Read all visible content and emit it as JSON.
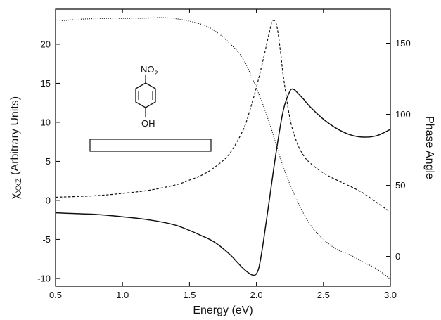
{
  "chart_data": {
    "type": "line",
    "title": "",
    "xlabel": "Energy (eV)",
    "ylabel_prefix": "χ",
    "ylabel_sub": "XXZ",
    "ylabel_suffix": " (Arbitrary Units)",
    "y2label": "Phase Angle",
    "xlim": [
      0.5,
      3.0
    ],
    "ylim": [
      -11,
      24.5
    ],
    "y2lim": [
      -21,
      174
    ],
    "x_ticks": [
      "0.5",
      "1.0",
      "1.5",
      "2.0",
      "2.5",
      "3.0"
    ],
    "y_ticks": [
      "-10",
      "-5",
      "0",
      "5",
      "10",
      "15",
      "20"
    ],
    "y2_ticks": [
      "0",
      "50",
      "100",
      "150"
    ],
    "grid": false,
    "legend": "none",
    "series": [
      {
        "style": "solid",
        "axis": "left",
        "x": [
          0.5,
          0.8,
          1.0,
          1.2,
          1.4,
          1.6,
          1.7,
          1.8,
          1.85,
          1.9,
          1.95,
          1.98,
          2.0,
          2.02,
          2.05,
          2.1,
          2.15,
          2.2,
          2.25,
          2.28,
          2.3,
          2.35,
          2.4,
          2.5,
          2.6,
          2.7,
          2.8,
          2.9,
          3.0
        ],
        "values": [
          -1.6,
          -1.8,
          -2.1,
          -2.5,
          -3.2,
          -4.6,
          -5.5,
          -6.9,
          -7.8,
          -8.7,
          -9.4,
          -9.6,
          -9.4,
          -8.5,
          -5.5,
          0.5,
          6.5,
          11.5,
          14.0,
          14.2,
          13.9,
          13.0,
          12.0,
          10.4,
          9.2,
          8.4,
          8.1,
          8.3,
          9.1
        ]
      },
      {
        "style": "dashed",
        "axis": "left",
        "x": [
          0.5,
          0.8,
          1.0,
          1.2,
          1.4,
          1.5,
          1.6,
          1.7,
          1.8,
          1.9,
          1.95,
          2.0,
          2.05,
          2.1,
          2.12,
          2.15,
          2.18,
          2.2,
          2.25,
          2.3,
          2.35,
          2.4,
          2.5,
          2.6,
          2.7,
          2.8,
          2.9,
          3.0
        ],
        "values": [
          0.4,
          0.6,
          0.9,
          1.3,
          2.0,
          2.6,
          3.3,
          4.4,
          6.0,
          9.0,
          11.5,
          14.5,
          18.0,
          21.8,
          23.0,
          22.5,
          19.0,
          16.0,
          10.5,
          7.5,
          5.8,
          4.8,
          3.5,
          2.6,
          1.8,
          0.9,
          -0.3,
          -1.5
        ]
      },
      {
        "style": "dotted",
        "axis": "right",
        "x": [
          0.5,
          0.7,
          0.9,
          1.1,
          1.3,
          1.45,
          1.6,
          1.7,
          1.8,
          1.9,
          2.0,
          2.1,
          2.2,
          2.3,
          2.4,
          2.5,
          2.6,
          2.7,
          2.8,
          2.9,
          3.0
        ],
        "values": [
          165.5,
          167.0,
          167.5,
          167.5,
          168.0,
          166.5,
          163.0,
          158.0,
          150.0,
          139.0,
          118.5,
          93.0,
          63.0,
          40.0,
          22.5,
          12.0,
          5.0,
          1.0,
          -4.0,
          -9.0,
          -16.0
        ]
      }
    ],
    "annotation": {
      "substituent_top_prefix": "NO",
      "substituent_top_sub": "2",
      "substituent_bottom": "OH"
    }
  }
}
